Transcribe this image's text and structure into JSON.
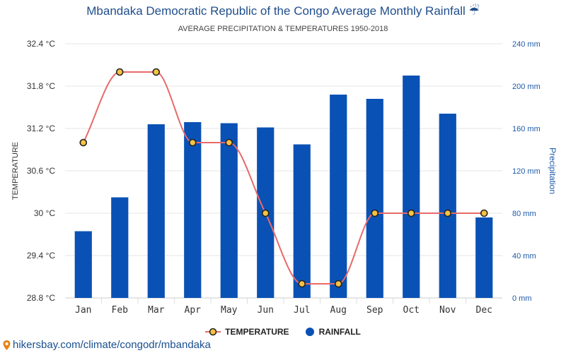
{
  "header": {
    "title": "Mbandaka Democratic Republic of the Congo Average Monthly Rainfall ☔",
    "subtitle": "AVERAGE PRECIPITATION & TEMPERATURES 1950-2018"
  },
  "legend": {
    "temperature_label": "TEMPERATURE",
    "rainfall_label": "RAINFALL"
  },
  "footer": {
    "link_text": "hikersbay.com/climate/congodr/mbandaka"
  },
  "colors": {
    "bar": "#0a51b5",
    "line": "#e86a6a",
    "marker_fill": "#f5c242",
    "marker_stroke": "#222222",
    "axis_right": "#1e5aa8",
    "grid": "#e6e6e6"
  },
  "chart_data": {
    "type": "bar+line",
    "categories": [
      "Jan",
      "Feb",
      "Mar",
      "Apr",
      "May",
      "Jun",
      "Jul",
      "Aug",
      "Sep",
      "Oct",
      "Nov",
      "Dec"
    ],
    "series": [
      {
        "name": "RAINFALL",
        "type": "bar",
        "axis": "right",
        "unit": "mm",
        "values": [
          63,
          95,
          164,
          166,
          165,
          161,
          145,
          192,
          188,
          210,
          174,
          76
        ]
      },
      {
        "name": "TEMPERATURE",
        "type": "line",
        "axis": "left",
        "unit": "°C",
        "values": [
          31.0,
          32.0,
          32.0,
          31.0,
          31.0,
          30.0,
          29.0,
          29.0,
          30.0,
          30.0,
          30.0,
          30.0
        ]
      }
    ],
    "y_left": {
      "label": "TEMPERATURE",
      "range": [
        28.8,
        32.4
      ],
      "ticks": [
        28.8,
        29.4,
        30.0,
        30.6,
        31.2,
        31.8,
        32.4
      ],
      "tick_labels": [
        "28.8 °C",
        "29.4 °C",
        "30 °C",
        "30.6 °C",
        "31.2 °C",
        "31.8 °C",
        "32.4 °C"
      ]
    },
    "y_right": {
      "label": "Precipitation",
      "range": [
        0,
        240
      ],
      "ticks": [
        0,
        40,
        80,
        120,
        160,
        200,
        240
      ],
      "tick_labels": [
        "0 mm",
        "40 mm",
        "80 mm",
        "120 mm",
        "160 mm",
        "200 mm",
        "240 mm"
      ]
    },
    "grid": true,
    "legend_position": "bottom-center"
  }
}
